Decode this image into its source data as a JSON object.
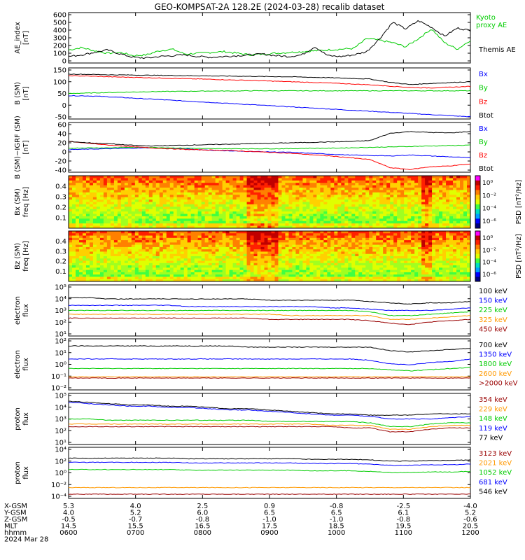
{
  "title": "GEO-KOMPSAT-2A 128.2E (2024-03-28) recalib dataset",
  "colors": {
    "black": "#000000",
    "blue": "#0000ff",
    "green": "#00cc00",
    "red": "#ff0000",
    "orange": "#ff9900",
    "darkred": "#990000",
    "lime": "#00ff00"
  },
  "chart_data": [
    {
      "type": "line",
      "id": "ae",
      "ylabel": [
        "AE_index",
        "[nT]"
      ],
      "yticks": [
        "600",
        "500",
        "400",
        "300",
        "200",
        "100",
        "0"
      ],
      "ylim": [
        0,
        620
      ],
      "series": [
        {
          "name": "Kyoto proxy AE",
          "color": "#00cc00",
          "label_lines": [
            "Kyoto",
            "proxy AE"
          ],
          "values": [
            160,
            190,
            150,
            120,
            130,
            90,
            100,
            150,
            170,
            110,
            120,
            130,
            140,
            120,
            100,
            110,
            120,
            130,
            140,
            150,
            160,
            170,
            180,
            300,
            280,
            250,
            200,
            300,
            420,
            250,
            170,
            280
          ]
        },
        {
          "name": "Themis AE",
          "color": "#000000",
          "label_lines": [
            "Themis AE"
          ],
          "values": [
            80,
            100,
            130,
            160,
            110,
            70,
            60,
            80,
            90,
            100,
            80,
            70,
            80,
            90,
            100,
            110,
            90,
            80,
            100,
            200,
            90,
            80,
            100,
            140,
            300,
            500,
            420,
            520,
            440,
            330,
            430,
            400
          ]
        }
      ]
    },
    {
      "type": "line",
      "id": "bsm",
      "ylabel": [
        "B (SM)",
        "[nT]"
      ],
      "yticks": [
        "150",
        "100",
        "50",
        "0",
        "-50"
      ],
      "ylim": [
        -70,
        160
      ],
      "series": [
        {
          "name": "Bx",
          "color": "#0000ff",
          "values": [
            35,
            34,
            30,
            25,
            20,
            15,
            10,
            5,
            0,
            -5,
            -10,
            -15,
            -20,
            -25,
            -30,
            -35,
            -40,
            -45,
            -50,
            -55,
            -60
          ]
        },
        {
          "name": "By",
          "color": "#00cc00",
          "values": [
            45,
            47,
            49,
            51,
            53,
            54,
            55,
            56,
            56,
            57,
            57,
            57,
            57,
            57,
            57,
            57,
            57,
            57,
            57,
            57,
            57
          ]
        },
        {
          "name": "Bz",
          "color": "#ff0000",
          "values": [
            125,
            123,
            120,
            118,
            116,
            113,
            111,
            109,
            106,
            104,
            101,
            98,
            95,
            92,
            88,
            84,
            78,
            72,
            70,
            73,
            77
          ]
        },
        {
          "name": "Btot",
          "color": "#000000",
          "values": [
            132,
            131,
            129,
            128,
            127,
            126,
            125,
            124,
            123,
            122,
            121,
            120,
            118,
            116,
            113,
            110,
            95,
            85,
            90,
            94,
            98
          ]
        }
      ]
    },
    {
      "type": "line",
      "id": "bdiff",
      "ylabel": [
        "B (SM)−IGRF (SM)",
        "[nT]"
      ],
      "yticks": [
        "60",
        "40",
        "20",
        "0",
        "-20",
        "-40"
      ],
      "ylim": [
        -48,
        62
      ],
      "series": [
        {
          "name": "Bx",
          "color": "#0000ff",
          "values": [
            2,
            3,
            4,
            5,
            6,
            5,
            3,
            1,
            -1,
            -2,
            -3,
            -4,
            -6,
            -8,
            -10,
            -11,
            -12,
            -10,
            -12,
            -14,
            -16
          ]
        },
        {
          "name": "By",
          "color": "#00cc00",
          "values": [
            5,
            6,
            6,
            7,
            7,
            6,
            5,
            4,
            4,
            4,
            4,
            4,
            5,
            5,
            6,
            7,
            8,
            9,
            10,
            11,
            12
          ]
        },
        {
          "name": "Bz",
          "color": "#ff0000",
          "values": [
            20,
            16,
            12,
            9,
            6,
            4,
            2,
            1,
            0,
            -2,
            -4,
            -6,
            -9,
            -12,
            -16,
            -20,
            -38,
            -42,
            -36,
            -34,
            -30
          ]
        },
        {
          "name": "Btot",
          "color": "#000000",
          "values": [
            20,
            17,
            15,
            12,
            10,
            11,
            12,
            13,
            14,
            15,
            16,
            17,
            18,
            19,
            20,
            22,
            38,
            42,
            40,
            39,
            42
          ]
        }
      ]
    },
    {
      "type": "heatmap",
      "id": "bx_spec",
      "ylabel": [
        "Bx (SM)",
        "freq [Hz]"
      ],
      "yticks": [
        "0.4",
        "0.3",
        "0.2",
        "0.1"
      ],
      "ylim": [
        0,
        0.5
      ],
      "colorbar": {
        "label": "PSD [nT²/Hz]",
        "ticks": [
          "10⁰",
          "10⁻²",
          "10⁻⁴",
          "10⁻⁶"
        ]
      }
    },
    {
      "type": "heatmap",
      "id": "bz_spec",
      "ylabel": [
        "Bz (SM)",
        "freq [Hz]"
      ],
      "yticks": [
        "0.4",
        "0.3",
        "0.2",
        "0.1"
      ],
      "ylim": [
        0,
        0.5
      ],
      "colorbar": {
        "label": "PSD [nT²/Hz]",
        "ticks": [
          "10⁰",
          "10⁻²",
          "10⁻⁴",
          "10⁻⁶"
        ]
      }
    },
    {
      "type": "line",
      "id": "elec_low",
      "log": true,
      "ylabel": [
        "electron",
        "flux"
      ],
      "yticks": [
        "10⁵",
        "10⁴",
        "10³",
        "10²",
        "10¹"
      ],
      "ylim": [
        1,
        5
      ],
      "series": [
        {
          "name": "100 keV",
          "color": "#000000",
          "values": [
            4.0,
            4.0,
            3.9,
            3.9,
            3.9,
            3.9,
            3.9,
            3.9,
            3.9,
            3.9,
            3.8,
            3.8,
            3.8,
            3.8,
            3.8,
            3.7,
            3.6,
            3.5,
            3.6,
            3.6,
            3.7
          ]
        },
        {
          "name": "150 keV",
          "color": "#0000ff",
          "values": [
            3.4,
            3.4,
            3.4,
            3.4,
            3.4,
            3.4,
            3.3,
            3.3,
            3.3,
            3.3,
            3.3,
            3.3,
            3.3,
            3.2,
            3.2,
            3.1,
            3.0,
            3.0,
            3.0,
            3.1,
            3.2
          ]
        },
        {
          "name": "225 keV",
          "color": "#00cc00",
          "values": [
            3.0,
            3.0,
            3.0,
            3.0,
            3.0,
            3.0,
            3.0,
            3.0,
            3.0,
            3.0,
            3.0,
            3.0,
            3.0,
            3.0,
            3.0,
            2.9,
            2.6,
            2.6,
            2.7,
            2.8,
            2.9
          ]
        },
        {
          "name": "325 keV",
          "color": "#ff9900",
          "values": [
            2.7,
            2.7,
            2.7,
            2.7,
            2.7,
            2.7,
            2.7,
            2.7,
            2.7,
            2.7,
            2.7,
            2.6,
            2.6,
            2.6,
            2.6,
            2.6,
            2.3,
            2.3,
            2.4,
            2.5,
            2.6
          ]
        },
        {
          "name": "450 keV",
          "color": "#990000",
          "values": [
            2.4,
            2.4,
            2.4,
            2.4,
            2.4,
            2.4,
            2.4,
            2.4,
            2.4,
            2.4,
            2.3,
            2.3,
            2.3,
            2.3,
            2.3,
            2.2,
            2.0,
            1.9,
            2.1,
            2.2,
            2.3
          ]
        }
      ]
    },
    {
      "type": "line",
      "id": "elec_high",
      "log": true,
      "ylabel": [
        "electron",
        "flux"
      ],
      "yticks": [
        "10²",
        "10¹",
        "10⁰",
        "10⁻¹",
        "10⁻²"
      ],
      "ylim": [
        -2.3,
        2
      ],
      "series": [
        {
          "name": "700 keV",
          "color": "#000000",
          "values": [
            1.4,
            1.4,
            1.4,
            1.4,
            1.4,
            1.4,
            1.4,
            1.4,
            1.4,
            1.3,
            1.3,
            1.3,
            1.3,
            1.3,
            1.3,
            1.3,
            1.0,
            0.9,
            1.0,
            1.1,
            1.2
          ]
        },
        {
          "name": "1350 keV",
          "color": "#0000ff",
          "values": [
            0.3,
            0.3,
            0.3,
            0.3,
            0.3,
            0.3,
            0.3,
            0.3,
            0.3,
            0.3,
            0.3,
            0.3,
            0.3,
            0.3,
            0.3,
            0.2,
            -0.1,
            -0.2,
            0.0,
            0.1,
            0.3
          ]
        },
        {
          "name": "1800 keV",
          "color": "#00cc00",
          "values": [
            -0.5,
            -0.5,
            -0.5,
            -0.5,
            -0.5,
            -0.5,
            -0.5,
            -0.5,
            -0.5,
            -0.5,
            -0.5,
            -0.5,
            -0.5,
            -0.5,
            -0.5,
            -0.5,
            -0.6,
            -0.7,
            -0.6,
            -0.5,
            -0.4
          ]
        },
        {
          "name": "2600 keV",
          "color": "#ff9900",
          "values": [
            -1.2,
            -1.2,
            -1.2,
            -1.2,
            -1.2,
            -1.2,
            -1.2,
            -1.2,
            -1.2,
            -1.2,
            -1.2,
            -1.2,
            -1.2,
            -1.2,
            -1.2,
            -1.2,
            -1.2,
            -1.2,
            -1.2,
            -1.2,
            -1.2
          ]
        },
        {
          "name": ">2000 keV",
          "color": "#990000",
          "values": [
            -1.3,
            -1.3,
            -1.3,
            -1.3,
            -1.3,
            -1.3,
            -1.3,
            -1.3,
            -1.3,
            -1.3,
            -1.3,
            -1.3,
            -1.3,
            -1.3,
            -1.3,
            -1.3,
            -1.3,
            -1.3,
            -1.3,
            -1.3,
            -1.3
          ]
        }
      ]
    },
    {
      "type": "line",
      "id": "prot_low",
      "log": true,
      "ylabel": [
        "proton",
        "flux"
      ],
      "yticks": [
        "10⁵",
        "10⁴",
        "10³",
        "10²",
        "10¹"
      ],
      "ylim": [
        1,
        5
      ],
      "series": [
        {
          "name": "354 keV",
          "color": "#990000",
          "values": [
            2.4,
            2.4,
            2.4,
            2.4,
            2.4,
            2.4,
            2.4,
            2.4,
            2.4,
            2.4,
            2.4,
            2.4,
            2.4,
            2.4,
            2.3,
            2.3,
            2.0,
            2.0,
            2.2,
            2.3,
            2.3
          ]
        },
        {
          "name": "229 keV",
          "color": "#ff9900",
          "values": [
            2.6,
            2.6,
            2.6,
            2.6,
            2.6,
            2.6,
            2.6,
            2.6,
            2.6,
            2.6,
            2.6,
            2.6,
            2.6,
            2.5,
            2.5,
            2.5,
            2.2,
            2.2,
            2.4,
            2.5,
            2.5
          ]
        },
        {
          "name": "148 keV",
          "color": "#00cc00",
          "values": [
            3.0,
            3.0,
            2.9,
            2.9,
            2.9,
            2.9,
            2.9,
            2.9,
            2.9,
            2.9,
            2.8,
            2.8,
            2.8,
            2.8,
            2.8,
            2.7,
            2.4,
            2.4,
            2.6,
            2.7,
            2.7
          ]
        },
        {
          "name": "119 keV",
          "color": "#0000ff",
          "values": [
            4.3,
            4.2,
            4.1,
            4.0,
            4.0,
            3.9,
            3.9,
            3.8,
            3.7,
            3.7,
            3.6,
            3.5,
            3.4,
            3.3,
            3.3,
            3.2,
            3.0,
            3.0,
            3.0,
            3.1,
            3.2
          ]
        },
        {
          "name": "77 keV",
          "color": "#000000",
          "values": [
            4.4,
            4.3,
            4.2,
            4.1,
            4.1,
            4.0,
            4.0,
            3.9,
            3.8,
            3.8,
            3.7,
            3.6,
            3.5,
            3.4,
            3.4,
            3.3,
            3.3,
            3.3,
            3.4,
            3.4,
            3.4
          ]
        }
      ]
    },
    {
      "type": "line",
      "id": "prot_high",
      "log": true,
      "ylabel": [
        "proton",
        "flux"
      ],
      "yticks": [
        "10⁴",
        "10²",
        "10⁰",
        "10⁻²",
        "10⁻⁴"
      ],
      "ylim": [
        -4.5,
        4
      ],
      "series": [
        {
          "name": "3123 keV",
          "color": "#990000",
          "values": [
            -3.8,
            -3.8,
            -3.8,
            -3.8,
            -3.8,
            -3.8,
            -3.8,
            -3.8,
            -3.8,
            -3.8,
            -3.8,
            -3.8,
            -3.8,
            -3.8,
            -3.8,
            -3.8,
            -3.8,
            -3.8,
            -3.8,
            -3.8,
            -3.8
          ]
        },
        {
          "name": "2021 keV",
          "color": "#ff9900",
          "values": [
            -2.7,
            -2.7,
            -2.7,
            -2.7,
            -2.7,
            -2.7,
            -2.7,
            -2.7,
            -2.7,
            -2.7,
            -2.7,
            -2.7,
            -2.7,
            -2.7,
            -2.7,
            -2.7,
            -2.7,
            -2.7,
            -2.7,
            -2.7,
            -2.7
          ]
        },
        {
          "name": "1052 keV",
          "color": "#00cc00",
          "values": [
            0.3,
            0.3,
            0.3,
            0.3,
            0.3,
            0.3,
            0.2,
            0.2,
            0.2,
            0.2,
            0.2,
            0.2,
            0.1,
            0.1,
            0.1,
            0.0,
            -0.2,
            -0.2,
            -0.1,
            -0.1,
            0.0
          ]
        },
        {
          "name": "681 keV",
          "color": "#0000ff",
          "values": [
            1.5,
            1.5,
            1.5,
            1.5,
            1.5,
            1.5,
            1.4,
            1.4,
            1.4,
            1.4,
            1.4,
            1.4,
            1.3,
            1.3,
            1.3,
            1.2,
            1.0,
            1.0,
            1.1,
            1.1,
            1.2
          ]
        },
        {
          "name": "546 keV",
          "color": "#000000",
          "values": [
            2.2,
            2.2,
            2.2,
            2.2,
            2.2,
            2.2,
            2.1,
            2.1,
            2.1,
            2.1,
            2.1,
            2.1,
            2.0,
            2.0,
            2.0,
            1.9,
            1.7,
            1.7,
            1.8,
            1.8,
            1.9
          ]
        }
      ]
    }
  ],
  "axis_table": {
    "rows": [
      {
        "label": "X-GSM",
        "values": [
          "5.3",
          "4.0",
          "2.5",
          "0.9",
          "-0.8",
          "-2.5",
          "-4.0"
        ]
      },
      {
        "label": "Y-GSM",
        "values": [
          "4.0",
          "5.2",
          "6.0",
          "6.5",
          "6.5",
          "6.1",
          "5.2"
        ]
      },
      {
        "label": "Z-GSM",
        "values": [
          "-0.5",
          "-0.7",
          "-0.8",
          "-1.0",
          "-1.0",
          "-0.8",
          "-0.6"
        ]
      },
      {
        "label": "MLT",
        "values": [
          "14.5",
          "15.5",
          "16.5",
          "17.5",
          "18.5",
          "19.5",
          "20.5"
        ]
      },
      {
        "label": "hhmm",
        "values": [
          "0600",
          "0700",
          "0800",
          "0900",
          "1000",
          "1100",
          "1200"
        ]
      }
    ],
    "date": "2024 Mar 28"
  }
}
